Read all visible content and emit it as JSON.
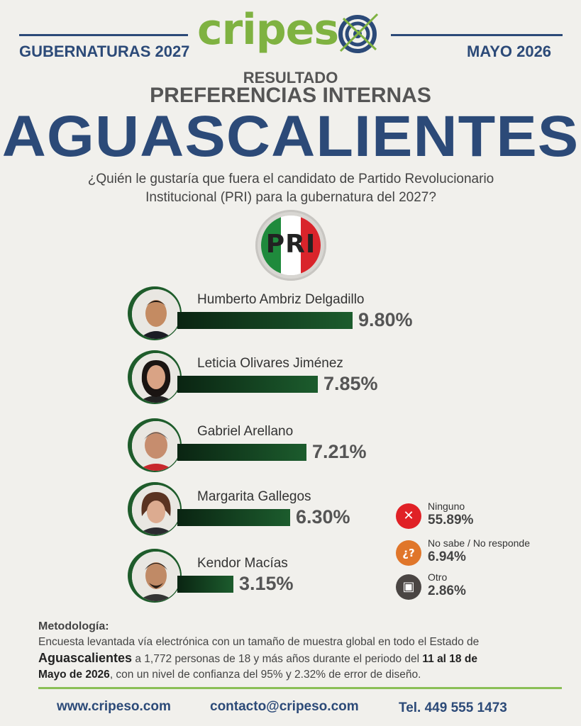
{
  "header": {
    "brand_prefix": "cripes",
    "brand_suffix": "o",
    "left_tag": "GUBERNATURAS 2027",
    "right_tag": "MAYO 2026"
  },
  "titles": {
    "resultado": "RESULTADO",
    "preferencias": "PREFERENCIAS INTERNAS",
    "state": "AGUASCALIENTES",
    "question_line1": "¿Quién le gustaría que fuera el candidato de Partido Revolucionario",
    "question_line2": "Institucional (PRI) para la gubernatura del 2027?"
  },
  "party_logo": "PRI",
  "chart_data": {
    "type": "bar",
    "categories": [
      "Humberto Ambriz Delgadillo",
      "Leticia Olivares Jiménez",
      "Gabriel Arellano",
      "Margarita Gallegos",
      "Kendor Macías"
    ],
    "values": [
      9.8,
      7.85,
      7.21,
      6.3,
      3.15
    ],
    "value_labels": [
      "9.80%",
      "7.85%",
      "7.21%",
      "6.30%",
      "3.15%"
    ],
    "other_responses": [
      {
        "label": "Ninguno",
        "value": 55.89,
        "text": "55.89%",
        "icon": "x-icon",
        "color": "#e02126"
      },
      {
        "label": "No sabe / No responde",
        "value": 6.94,
        "text": "6.94%",
        "icon": "question-icon",
        "color": "#e0762a"
      },
      {
        "label": "Otro",
        "value": 2.86,
        "text": "2.86%",
        "icon": "ballot-icon",
        "color": "#4a4543"
      }
    ],
    "colors": {
      "bar_dark": "#0a2412",
      "bar_light": "#1c5c2d",
      "accent": "#2c4a78",
      "green": "#7cb342"
    }
  },
  "methodology": {
    "heading": "Metodología:",
    "p1": "Encuesta levantada vía electrónica con un tamaño de muestra global en todo el Estado de",
    "state_bold": "Aguascalientes",
    "p2": " a 1,772 personas de 18 y más años durante el periodo del ",
    "dates_bold_1": "11 al 18 de",
    "dates_bold_2": "Mayo de 2026",
    "p3": ", con un nivel de confianza del 95% y 2.32% de error de diseño."
  },
  "footer": {
    "website": "www.cripeso.com",
    "email": "contacto@cripeso.com",
    "phone": "Tel. 449 555 1473"
  }
}
